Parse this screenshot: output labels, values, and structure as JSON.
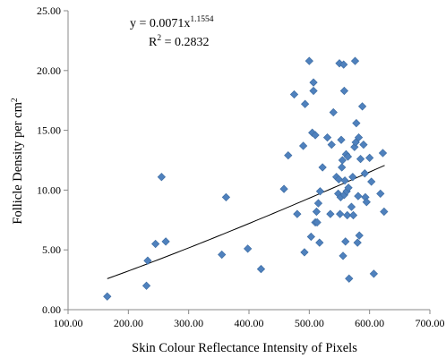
{
  "chart_data": {
    "type": "scatter",
    "title": "",
    "xlabel": "Skin Colour Reflectance Intensity of Pixels",
    "ylabel_main": "Follicle  Density per cm",
    "ylabel_sup": "2",
    "xlim": [
      100,
      700
    ],
    "ylim": [
      0,
      25
    ],
    "x_ticks": [
      100,
      200,
      300,
      400,
      500,
      600,
      700
    ],
    "y_ticks": [
      0,
      5,
      10,
      15,
      20,
      25
    ],
    "x_tick_labels": [
      "100.00",
      "200.00",
      "300.00",
      "400.00",
      "500.00",
      "600.00",
      "700.00"
    ],
    "y_tick_labels": [
      "0.00",
      "5.00",
      "10.00",
      "15.00",
      "20.00",
      "25.00"
    ],
    "grid": false,
    "marker_color": "#4f81bd",
    "marker_edge_color": "#3b6aa0",
    "trend_color": "#000000",
    "annotation": {
      "equation_main": "y = 0.0071x",
      "equation_exp": "1.1554",
      "r2_prefix": "R",
      "r2_exp": "2",
      "r2_value": " = 0.2832"
    },
    "trendline": {
      "type": "power",
      "a": 0.0071,
      "b": 1.1554,
      "x_start": 165,
      "x_end": 625
    },
    "points": [
      [
        165,
        1.1
      ],
      [
        230,
        2.0
      ],
      [
        232,
        4.1
      ],
      [
        245,
        5.5
      ],
      [
        255,
        11.1
      ],
      [
        262,
        5.7
      ],
      [
        355,
        4.6
      ],
      [
        362,
        9.4
      ],
      [
        398,
        5.1
      ],
      [
        420,
        3.4
      ],
      [
        458,
        10.1
      ],
      [
        465,
        12.9
      ],
      [
        475,
        18.0
      ],
      [
        480,
        8.0
      ],
      [
        490,
        13.7
      ],
      [
        492,
        4.8
      ],
      [
        493,
        17.2
      ],
      [
        500,
        20.8
      ],
      [
        503,
        6.1
      ],
      [
        505,
        14.8
      ],
      [
        507,
        18.3
      ],
      [
        507,
        19.0
      ],
      [
        510,
        7.3
      ],
      [
        510,
        14.6
      ],
      [
        512,
        8.2
      ],
      [
        513,
        7.3
      ],
      [
        515,
        8.9
      ],
      [
        517,
        5.6
      ],
      [
        518,
        9.9
      ],
      [
        522,
        11.9
      ],
      [
        530,
        14.4
      ],
      [
        535,
        8.0
      ],
      [
        537,
        13.8
      ],
      [
        540,
        16.5
      ],
      [
        545,
        11.1
      ],
      [
        548,
        9.7
      ],
      [
        549,
        10.9
      ],
      [
        550,
        20.6
      ],
      [
        551,
        8.0
      ],
      [
        552,
        9.4
      ],
      [
        553,
        14.2
      ],
      [
        554,
        11.9
      ],
      [
        555,
        12.5
      ],
      [
        556,
        4.5
      ],
      [
        557,
        20.5
      ],
      [
        558,
        18.3
      ],
      [
        558,
        9.6
      ],
      [
        559,
        10.8
      ],
      [
        560,
        5.7
      ],
      [
        561,
        13.0
      ],
      [
        562,
        9.9
      ],
      [
        563,
        7.9
      ],
      [
        564,
        12.8
      ],
      [
        565,
        10.2
      ],
      [
        566,
        2.6
      ],
      [
        570,
        8.6
      ],
      [
        572,
        11.1
      ],
      [
        573,
        7.9
      ],
      [
        575,
        13.6
      ],
      [
        576,
        20.8
      ],
      [
        577,
        14.0
      ],
      [
        578,
        15.6
      ],
      [
        580,
        5.6
      ],
      [
        581,
        9.5
      ],
      [
        582,
        14.4
      ],
      [
        583,
        6.2
      ],
      [
        585,
        12.6
      ],
      [
        588,
        17.0
      ],
      [
        590,
        13.8
      ],
      [
        592,
        11.4
      ],
      [
        593,
        9.4
      ],
      [
        595,
        9.0
      ],
      [
        600,
        12.7
      ],
      [
        603,
        10.7
      ],
      [
        607,
        3.0
      ],
      [
        618,
        9.7
      ],
      [
        622,
        13.1
      ],
      [
        624,
        8.2
      ]
    ]
  }
}
